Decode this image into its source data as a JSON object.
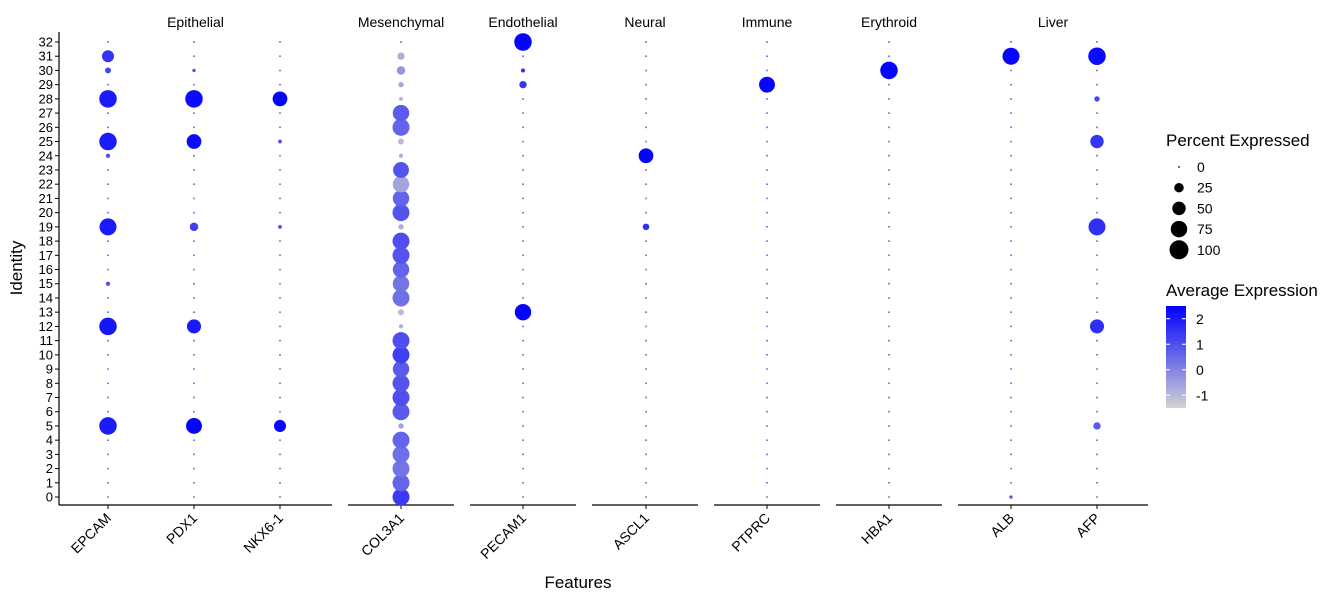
{
  "chart_data": {
    "type": "dotplot",
    "xlabel": "Features",
    "ylabel": "Identity",
    "identities": [
      "0",
      "1",
      "2",
      "3",
      "4",
      "5",
      "6",
      "7",
      "8",
      "9",
      "10",
      "11",
      "12",
      "13",
      "14",
      "15",
      "16",
      "17",
      "18",
      "19",
      "20",
      "21",
      "22",
      "23",
      "24",
      "25",
      "26",
      "27",
      "28",
      "29",
      "30",
      "31",
      "32"
    ],
    "panels": [
      {
        "name": "Epithelial",
        "features": [
          "EPCAM",
          "PDX1",
          "NKX6-1"
        ]
      },
      {
        "name": "Mesenchymal",
        "features": [
          "COL3A1"
        ]
      },
      {
        "name": "Endothelial",
        "features": [
          "PECAM1"
        ]
      },
      {
        "name": "Neural",
        "features": [
          "ASCL1"
        ]
      },
      {
        "name": "Immune",
        "features": [
          "PTPRC"
        ]
      },
      {
        "name": "Erythroid",
        "features": [
          "HBA1"
        ]
      },
      {
        "name": "Liver",
        "features": [
          "ALB",
          "AFP"
        ]
      }
    ],
    "points": {
      "EPCAM": {
        "31": [
          40,
          1.5
        ],
        "30": [
          10,
          1.2
        ],
        "28": [
          85,
          2.0
        ],
        "25": [
          85,
          2.0
        ],
        "24": [
          5,
          1.0
        ],
        "19": [
          80,
          2.0
        ],
        "15": [
          5,
          1.0
        ],
        "12": [
          85,
          2.1
        ],
        "5": [
          85,
          2.0
        ]
      },
      "PDX1": {
        "30": [
          3,
          1.0
        ],
        "28": [
          85,
          2.3
        ],
        "25": [
          60,
          2.3
        ],
        "19": [
          20,
          1.3
        ],
        "12": [
          55,
          2.0
        ],
        "5": [
          70,
          2.4
        ]
      },
      "NKX6-1": {
        "28": [
          60,
          2.4
        ],
        "25": [
          4,
          1.0
        ],
        "19": [
          4,
          1.0
        ],
        "5": [
          40,
          2.4
        ]
      },
      "COL3A1": {
        "31": [
          15,
          -0.8
        ],
        "30": [
          20,
          -0.3
        ],
        "29": [
          8,
          -0.6
        ],
        "28": [
          4,
          -0.8
        ],
        "27": [
          75,
          0.8
        ],
        "26": [
          80,
          0.6
        ],
        "25": [
          10,
          -1.0
        ],
        "24": [
          5,
          -0.8
        ],
        "23": [
          70,
          0.9
        ],
        "22": [
          75,
          -0.6
        ],
        "21": [
          75,
          0.6
        ],
        "20": [
          80,
          0.9
        ],
        "19": [
          8,
          -0.8
        ],
        "18": [
          80,
          1.0
        ],
        "17": [
          80,
          0.9
        ],
        "16": [
          75,
          0.6
        ],
        "15": [
          75,
          0.3
        ],
        "14": [
          80,
          0.4
        ],
        "13": [
          10,
          -1.0
        ],
        "12": [
          5,
          -0.8
        ],
        "11": [
          80,
          1.0
        ],
        "10": [
          80,
          1.3
        ],
        "9": [
          75,
          0.8
        ],
        "8": [
          80,
          0.9
        ],
        "7": [
          80,
          1.0
        ],
        "6": [
          80,
          0.8
        ],
        "5": [
          8,
          -0.6
        ],
        "4": [
          80,
          0.6
        ],
        "3": [
          80,
          0.4
        ],
        "2": [
          80,
          0.3
        ],
        "1": [
          80,
          0.6
        ],
        "0": [
          80,
          1.4
        ]
      },
      "PECAM1": {
        "32": [
          85,
          2.4
        ],
        "30": [
          5,
          1.5
        ],
        "29": [
          15,
          1.5
        ],
        "13": [
          75,
          2.4
        ]
      },
      "ASCL1": {
        "24": [
          60,
          2.4
        ],
        "19": [
          12,
          1.6
        ]
      },
      "PTPRC": {
        "29": [
          70,
          2.4
        ]
      },
      "HBA1": {
        "30": [
          85,
          2.4
        ]
      },
      "ALB": {
        "31": [
          80,
          2.4
        ],
        "0": [
          3,
          1.0
        ]
      },
      "AFP": {
        "31": [
          85,
          2.3
        ],
        "28": [
          8,
          1.2
        ],
        "25": [
          50,
          1.5
        ],
        "19": [
          80,
          1.6
        ],
        "12": [
          55,
          1.6
        ],
        "5": [
          15,
          0.8
        ]
      }
    },
    "background_point": [
      1,
      0.5
    ],
    "size_legend": {
      "title": "Percent Expressed",
      "values": [
        0,
        25,
        50,
        75,
        100
      ],
      "labels": [
        "0",
        "25",
        "50",
        "75",
        "100"
      ]
    },
    "color_legend": {
      "title": "Average Expression",
      "ticks": [
        2,
        1,
        0,
        -1
      ],
      "tick_labels": [
        "2",
        "1",
        "0",
        "-1"
      ],
      "range": [
        -1.5,
        2.5
      ],
      "low_color": "#d3d3d3",
      "high_color": "#0000ff"
    },
    "grid": false
  }
}
